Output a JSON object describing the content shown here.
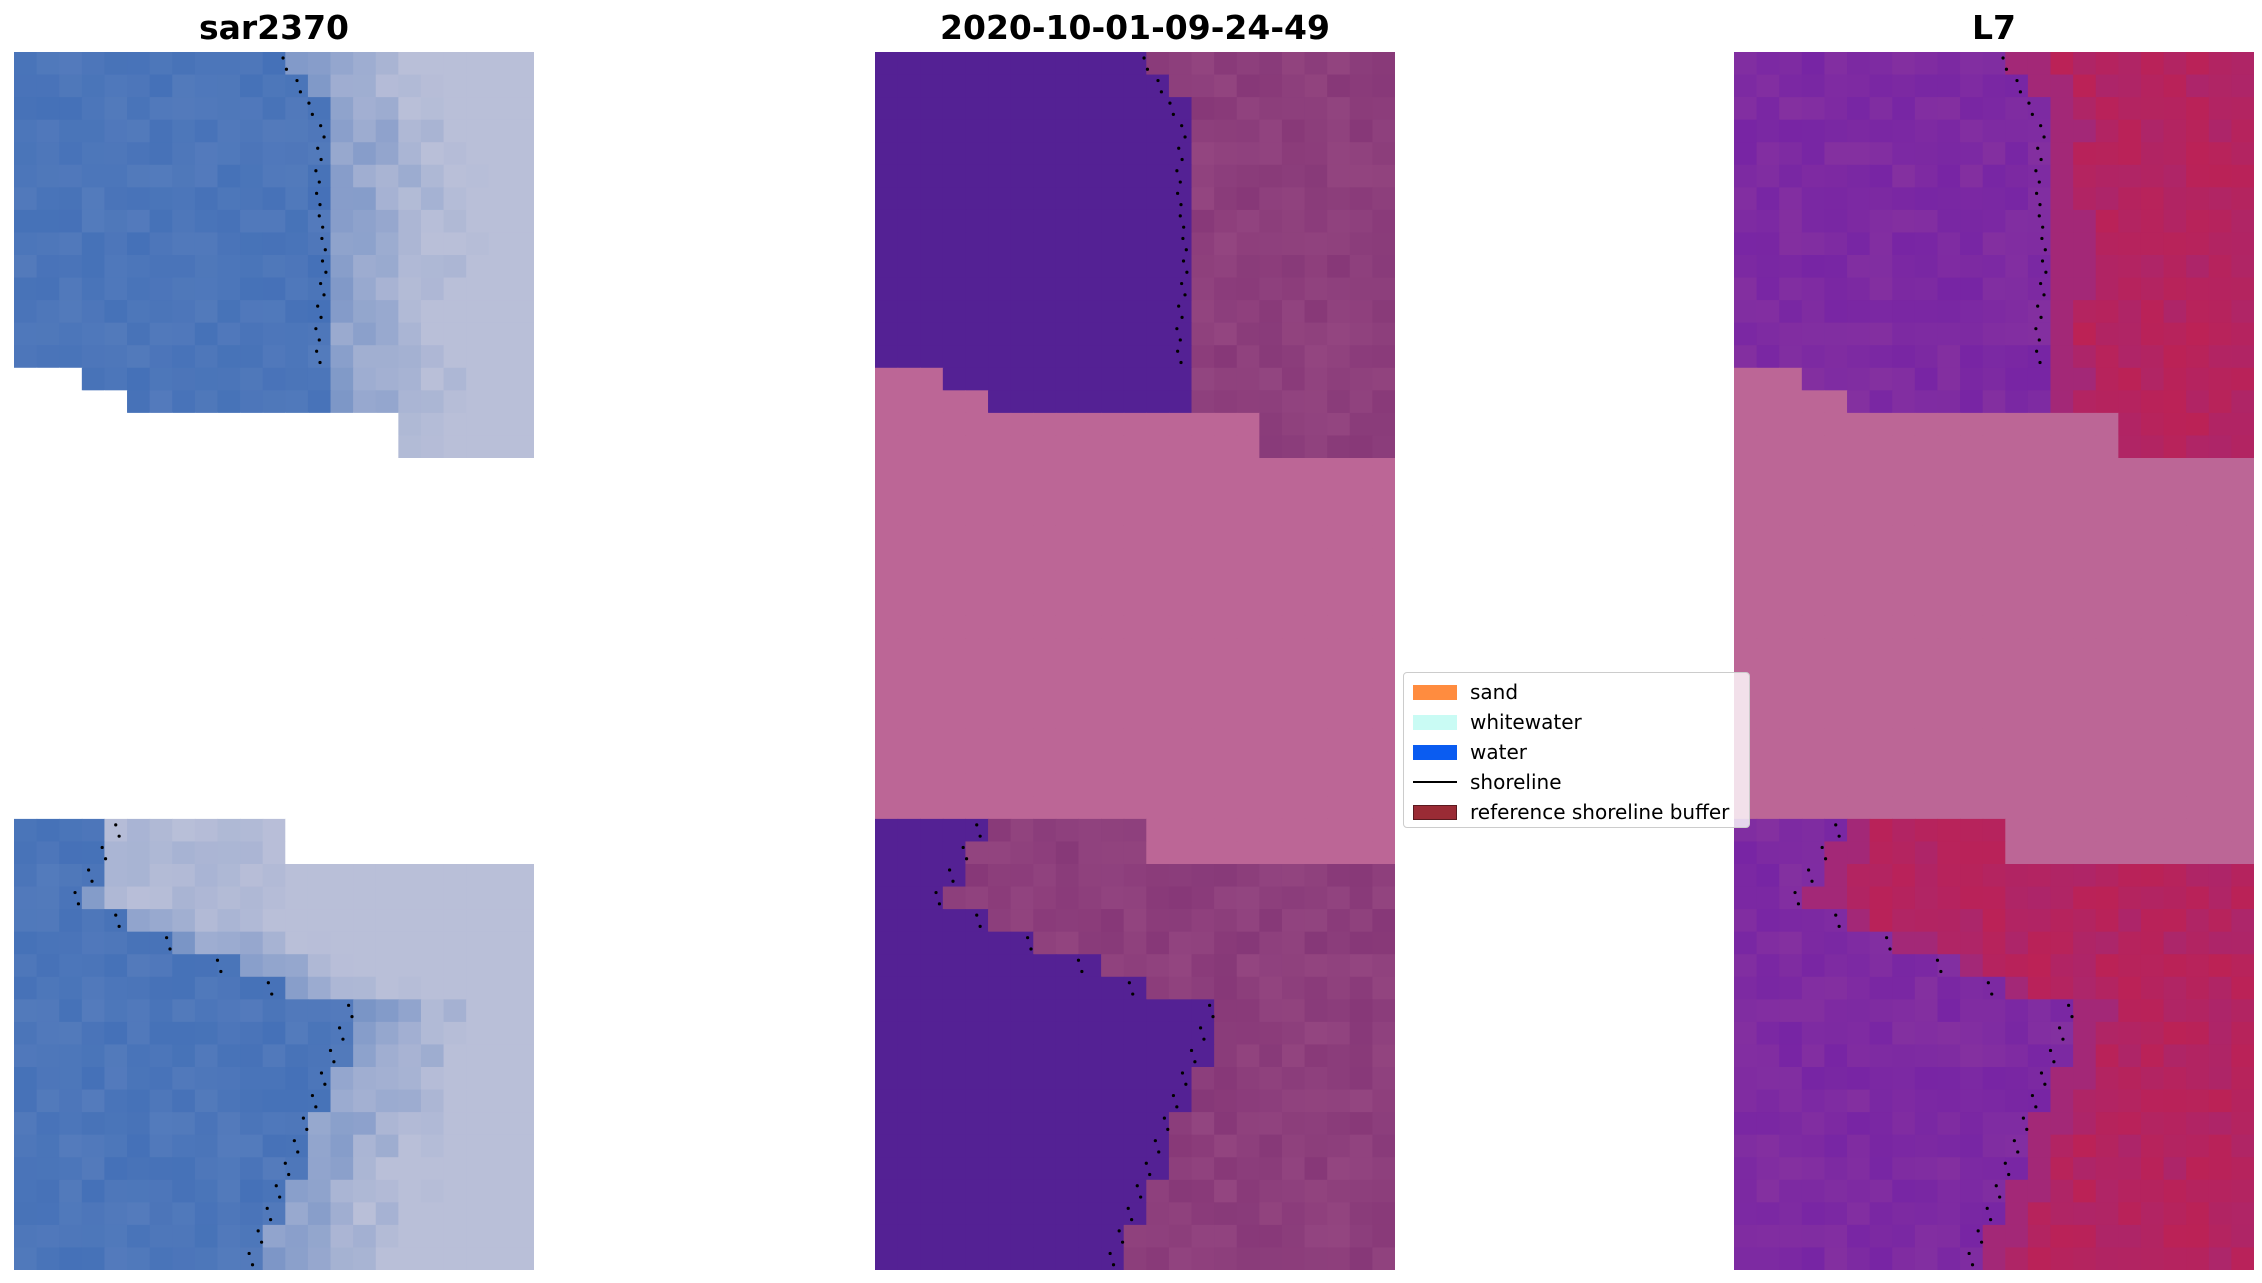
{
  "panels": [
    {
      "title": "sar2370"
    },
    {
      "title": "2020-10-01-09-24-49"
    },
    {
      "title": "L7"
    }
  ],
  "legend": {
    "items": [
      {
        "label": "sand",
        "kind": "patch",
        "color": "#ff8c3f"
      },
      {
        "label": "whitewater",
        "kind": "patch",
        "color": "#c9fbf4"
      },
      {
        "label": "water",
        "kind": "patch",
        "color": "#0a5cf1"
      },
      {
        "label": "shoreline",
        "kind": "line",
        "color": "#000000"
      },
      {
        "label": "reference shoreline buffer",
        "kind": "patch",
        "color": "#9a2b35",
        "edge": "#5a1a20"
      }
    ]
  },
  "colors": {
    "rgb_water": "#3f6db6",
    "rgb_sand": "#b9bfd8",
    "class_water": "#542194",
    "class_land": "#9c4f86",
    "class_nodata": "#bc6696",
    "mndwi_water": "#8430a0",
    "mndwi_land": "#c2204d",
    "mndwi_nodata": "#bc6696"
  }
}
